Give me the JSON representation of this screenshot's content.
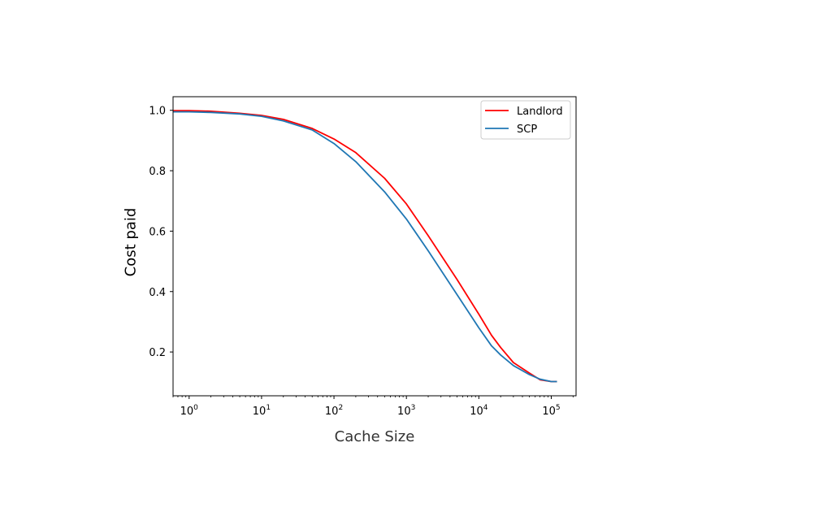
{
  "chart_data": {
    "type": "line",
    "xlabel": "Cache Size",
    "ylabel": "Cost paid",
    "xscale": "log",
    "xlim": [
      0.6,
      220000
    ],
    "ylim": [
      0.055,
      1.045
    ],
    "x_ticks": [
      {
        "value": 1,
        "base": "10",
        "exp": "0"
      },
      {
        "value": 10,
        "base": "10",
        "exp": "1"
      },
      {
        "value": 100,
        "base": "10",
        "exp": "2"
      },
      {
        "value": 1000,
        "base": "10",
        "exp": "3"
      },
      {
        "value": 10000,
        "base": "10",
        "exp": "4"
      },
      {
        "value": 100000,
        "base": "10",
        "exp": "5"
      }
    ],
    "y_ticks": [
      {
        "value": 0.2,
        "label": "0.2"
      },
      {
        "value": 0.4,
        "label": "0.4"
      },
      {
        "value": 0.6,
        "label": "0.6"
      },
      {
        "value": 0.8,
        "label": "0.8"
      },
      {
        "value": 1.0,
        "label": "1.0"
      }
    ],
    "grid": false,
    "legend_position": "top-right",
    "series": [
      {
        "name": "Landlord",
        "color": "#ff0000",
        "points": [
          [
            0.6,
            0.999
          ],
          [
            1,
            0.999
          ],
          [
            2,
            0.997
          ],
          [
            5,
            0.99
          ],
          [
            10,
            0.983
          ],
          [
            20,
            0.97
          ],
          [
            50,
            0.94
          ],
          [
            100,
            0.905
          ],
          [
            200,
            0.86
          ],
          [
            500,
            0.775
          ],
          [
            1000,
            0.69
          ],
          [
            2000,
            0.585
          ],
          [
            5000,
            0.44
          ],
          [
            10000,
            0.325
          ],
          [
            15000,
            0.255
          ],
          [
            20000,
            0.215
          ],
          [
            30000,
            0.165
          ],
          [
            50000,
            0.13
          ],
          [
            70000,
            0.108
          ],
          [
            100000,
            0.102
          ],
          [
            120000,
            0.102
          ]
        ]
      },
      {
        "name": "SCP",
        "color": "#1f77b4",
        "points": [
          [
            0.6,
            0.995
          ],
          [
            1,
            0.995
          ],
          [
            2,
            0.993
          ],
          [
            5,
            0.988
          ],
          [
            10,
            0.98
          ],
          [
            20,
            0.965
          ],
          [
            50,
            0.935
          ],
          [
            100,
            0.89
          ],
          [
            200,
            0.83
          ],
          [
            500,
            0.73
          ],
          [
            1000,
            0.64
          ],
          [
            2000,
            0.535
          ],
          [
            5000,
            0.39
          ],
          [
            10000,
            0.28
          ],
          [
            15000,
            0.22
          ],
          [
            20000,
            0.19
          ],
          [
            30000,
            0.155
          ],
          [
            50000,
            0.125
          ],
          [
            70000,
            0.11
          ],
          [
            100000,
            0.102
          ],
          [
            120000,
            0.102
          ]
        ]
      }
    ]
  }
}
